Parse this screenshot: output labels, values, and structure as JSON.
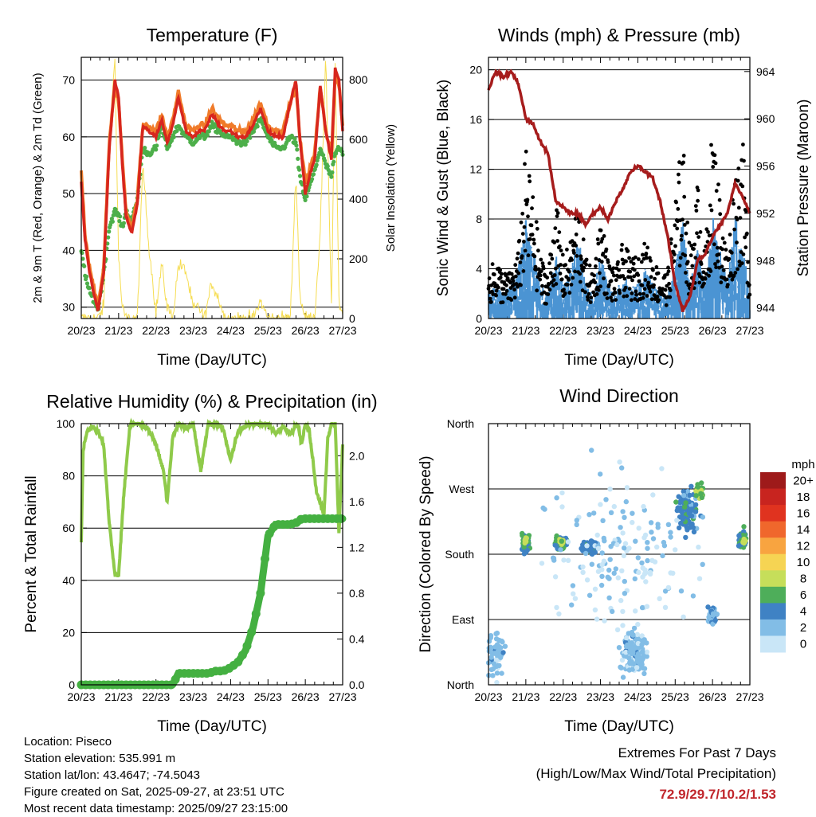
{
  "days": [
    "20/23",
    "21/23",
    "22/23",
    "23/23",
    "24/23",
    "25/23",
    "26/23",
    "27/23"
  ],
  "xlabel": "Time (Day/UTC)",
  "chart_data": [
    {
      "id": "temperature",
      "type": "line",
      "title": "Temperature (F)",
      "ylabel": "2m & 9m T (Red, Orange) & 2m Td (Green)",
      "y2label": "Solar Insolation (Yellow)",
      "ylim": [
        28,
        74
      ],
      "yticks": [
        30,
        40,
        50,
        60,
        70
      ],
      "y2lim": [
        0,
        875
      ],
      "y2ticks": [
        0,
        200,
        400,
        600,
        800
      ],
      "x": [
        0,
        0.1,
        0.2,
        0.35,
        0.45,
        0.6,
        0.75,
        0.9,
        1.0,
        1.1,
        1.2,
        1.35,
        1.5,
        1.65,
        1.8,
        2.0,
        2.15,
        2.3,
        2.45,
        2.6,
        2.8,
        3.0,
        3.15,
        3.3,
        3.5,
        3.7,
        3.85,
        4.0,
        4.2,
        4.4,
        4.6,
        4.8,
        5.0,
        5.2,
        5.4,
        5.6,
        5.75,
        5.85,
        6.0,
        6.15,
        6.25,
        6.4,
        6.55,
        6.7,
        6.8,
        6.9,
        7.0
      ],
      "series": [
        {
          "name": "2m T",
          "color": "#d7261e",
          "values": [
            52,
            42,
            37,
            32,
            29.5,
            36,
            58,
            70,
            67,
            55,
            46,
            43,
            48,
            62,
            61,
            60,
            63,
            59,
            62,
            67,
            61,
            60,
            61,
            61,
            64,
            62,
            61,
            61,
            60,
            60,
            62,
            65,
            61,
            60,
            60,
            66,
            70,
            60,
            50,
            54,
            56,
            69,
            61,
            56,
            72,
            70,
            61
          ]
        },
        {
          "name": "9m T",
          "color": "#f07b2a",
          "values": [
            54,
            43,
            38,
            33,
            30,
            37,
            59,
            69,
            66,
            56,
            47,
            44,
            49,
            62,
            62,
            61,
            64,
            60,
            63,
            68,
            62,
            61,
            62,
            62,
            65,
            63,
            62,
            62,
            61,
            61,
            63,
            66,
            62,
            61,
            61,
            66,
            69,
            60,
            52,
            55,
            57,
            69,
            61,
            57,
            71,
            69,
            62
          ]
        },
        {
          "name": "2m Td",
          "color": "#4daf4a",
          "values": [
            40,
            36,
            33,
            31,
            29.5,
            36,
            44,
            47,
            46,
            44,
            47,
            45,
            49,
            58,
            57,
            58,
            62,
            58,
            60,
            62,
            60,
            59,
            60,
            60,
            62,
            61,
            60,
            60,
            59,
            59,
            61,
            63,
            60,
            58,
            58,
            60,
            59,
            53,
            49,
            52,
            54,
            58,
            55,
            53,
            57,
            58,
            57
          ]
        },
        {
          "name": "Solar Insolation",
          "color": "#f6dd52",
          "axis": "y2",
          "values": [
            0,
            0,
            0,
            0,
            0,
            40,
            600,
            870,
            200,
            30,
            0,
            0,
            0,
            520,
            260,
            20,
            180,
            40,
            0,
            180,
            160,
            30,
            40,
            0,
            120,
            60,
            0,
            0,
            0,
            0,
            0,
            60,
            0,
            0,
            0,
            0,
            500,
            80,
            0,
            0,
            0,
            300,
            870,
            40,
            860,
            50,
            0
          ]
        }
      ]
    },
    {
      "id": "winds",
      "type": "line",
      "title": "Winds (mph) & Pressure (mb)",
      "ylabel": "Sonic Wind & Gust (Blue, Black)",
      "y2label": "Station Pressure (Maroon)",
      "ylim": [
        0,
        21
      ],
      "yticks": [
        0,
        4,
        8,
        12,
        16,
        20
      ],
      "y2lim": [
        943.1,
        965.2
      ],
      "y2ticks": [
        944,
        948,
        952,
        956,
        960,
        964
      ],
      "x": [
        0,
        0.2,
        0.4,
        0.6,
        0.8,
        1.0,
        1.2,
        1.4,
        1.6,
        1.8,
        2.0,
        2.2,
        2.4,
        2.6,
        2.8,
        3.0,
        3.2,
        3.4,
        3.6,
        3.8,
        4.0,
        4.2,
        4.4,
        4.6,
        4.8,
        5.0,
        5.2,
        5.4,
        5.6,
        5.8,
        6.0,
        6.2,
        6.4,
        6.6,
        6.8,
        7.0
      ],
      "series": [
        {
          "name": "Sonic Wind",
          "color": "#4b94d3",
          "values": [
            1.5,
            2,
            1.5,
            2,
            3,
            6,
            4,
            2,
            1.5,
            4,
            2,
            3,
            5,
            2,
            1.5,
            4,
            2,
            1.5,
            2.5,
            2,
            2,
            3,
            2,
            1.5,
            1.5,
            3,
            6,
            2,
            4,
            2,
            6,
            4,
            2,
            6,
            4,
            2
          ]
        },
        {
          "name": "Gust",
          "color": "#000000",
          "values": [
            3,
            4,
            3,
            3,
            4.5,
            11,
            8,
            4,
            3,
            8,
            4,
            5,
            8,
            4,
            3,
            7,
            4,
            3,
            5,
            4,
            4,
            5,
            4,
            3,
            3,
            8,
            12,
            4,
            9,
            4,
            13,
            8,
            4,
            10,
            12,
            3
          ]
        },
        {
          "name": "Station Pressure",
          "color": "#a61c1c",
          "axis": "y2",
          "values": [
            962.5,
            964,
            963.5,
            964,
            963,
            960,
            959.5,
            958,
            957,
            953,
            952.5,
            952,
            952,
            951,
            952,
            952.5,
            951.5,
            953,
            954,
            955.5,
            956,
            955.5,
            955,
            953,
            950,
            946,
            943.8,
            945,
            948,
            948.5,
            950,
            951,
            952,
            954.5,
            953.5,
            952
          ]
        }
      ]
    },
    {
      "id": "humidity",
      "type": "line",
      "title": "Relative Humidity (%) & Precipitation (in)",
      "ylabel": "Percent & Total Rainfall",
      "ylim": [
        0,
        100
      ],
      "yticks": [
        0,
        20,
        40,
        60,
        80,
        100
      ],
      "y2lim": [
        0,
        2.28
      ],
      "y2ticks": [
        "0.0",
        "0.4",
        "0.8",
        "1.2",
        "1.6",
        "2.0"
      ],
      "x": [
        0,
        0.05,
        0.15,
        0.3,
        0.45,
        0.6,
        0.75,
        0.9,
        1.0,
        1.15,
        1.3,
        1.4,
        1.55,
        1.7,
        1.8,
        2.0,
        2.2,
        2.3,
        2.45,
        2.6,
        2.8,
        3.0,
        3.2,
        3.4,
        3.6,
        3.8,
        4.0,
        4.2,
        4.4,
        4.6,
        4.8,
        5.0,
        5.2,
        5.4,
        5.6,
        5.8,
        5.9,
        6.0,
        6.1,
        6.3,
        6.5,
        6.6,
        6.7,
        6.8,
        6.9,
        7.0
      ],
      "series": [
        {
          "name": "Relative Humidity",
          "color": "#8fca4a",
          "values": [
            55,
            90,
            97,
            99,
            97,
            92,
            62,
            42,
            42,
            75,
            99,
            100,
            100,
            99,
            98,
            92,
            82,
            70,
            95,
            100,
            98,
            100,
            82,
            100,
            100,
            98,
            86,
            97,
            99,
            100,
            100,
            100,
            96,
            99,
            96,
            100,
            92,
            100,
            98,
            74,
            65,
            94,
            100,
            100,
            58,
            92
          ]
        },
        {
          "name": "Total Precipitation",
          "color": "#44b041",
          "axis": "y2",
          "values": [
            0,
            0,
            0,
            0,
            0,
            0,
            0,
            0,
            0,
            0,
            0,
            0,
            0,
            0,
            0,
            0,
            0,
            0,
            0,
            0.1,
            0.1,
            0.1,
            0.1,
            0.1,
            0.12,
            0.12,
            0.15,
            0.2,
            0.3,
            0.5,
            0.8,
            1.3,
            1.4,
            1.4,
            1.4,
            1.42,
            1.45,
            1.45,
            1.45,
            1.45,
            1.45,
            1.45,
            1.45,
            1.45,
            1.45,
            1.45
          ]
        }
      ]
    },
    {
      "id": "direction",
      "type": "scatter",
      "title": "Wind Direction",
      "ylabel": "Direction (Colored By Speed)",
      "ylim": [
        0,
        360
      ],
      "yticks": [
        "North",
        "East",
        "South",
        "West",
        "North"
      ],
      "legend_title": "mph",
      "legend_labels": [
        "20+",
        "18",
        "16",
        "14",
        "12",
        "10",
        "8",
        "6",
        "4",
        "2",
        "0"
      ],
      "legend_colors": [
        "#9e1a1a",
        "#c8241f",
        "#e0331f",
        "#f0672c",
        "#f8a440",
        "#f6d453",
        "#c6de5a",
        "#4eae5a",
        "#3f82c4",
        "#82bde6",
        "#c9e6f7"
      ],
      "clusters": [
        {
          "x": 0.2,
          "dx": 0.35,
          "dir": 40,
          "ddir": 55,
          "speed": 2,
          "n": 60
        },
        {
          "x": 1.0,
          "dx": 0.15,
          "dir": 195,
          "ddir": 20,
          "speed": 5,
          "n": 60
        },
        {
          "x": 1.0,
          "dx": 0.05,
          "dir": 200,
          "ddir": 6,
          "speed": 8,
          "n": 12
        },
        {
          "x": 1.95,
          "dx": 0.25,
          "dir": 195,
          "ddir": 15,
          "speed": 5,
          "n": 70
        },
        {
          "x": 1.95,
          "dx": 0.08,
          "dir": 197,
          "ddir": 5,
          "speed": 8,
          "n": 14
        },
        {
          "x": 2.75,
          "dx": 0.35,
          "dir": 190,
          "ddir": 15,
          "speed": 4,
          "n": 70
        },
        {
          "x": 3.9,
          "dx": 0.55,
          "dir": 45,
          "ddir": 45,
          "speed": 2,
          "n": 140
        },
        {
          "x": 5.3,
          "dx": 0.45,
          "dir": 240,
          "ddir": 45,
          "speed": 4,
          "n": 110
        },
        {
          "x": 5.65,
          "dx": 0.2,
          "dir": 265,
          "ddir": 20,
          "speed": 7,
          "n": 35
        },
        {
          "x": 6.0,
          "dx": 0.2,
          "dir": 95,
          "ddir": 25,
          "speed": 3,
          "n": 30
        },
        {
          "x": 6.8,
          "dx": 0.2,
          "dir": 200,
          "ddir": 22,
          "speed": 5,
          "n": 45
        },
        {
          "x": 6.85,
          "dx": 0.05,
          "dir": 198,
          "ddir": 6,
          "speed": 8,
          "n": 10
        },
        {
          "x": 3.5,
          "dx": 3.6,
          "dir": 180,
          "ddir": 180,
          "speed": 1,
          "n": 160
        }
      ]
    }
  ],
  "info": {
    "location": "Location: Piseco",
    "elevation": "Station elevation: 535.991 m",
    "latlon": "Station lat/lon: 43.4647; -74.5043",
    "created": "Figure created on Sat, 2025-09-27, at 23:51 UTC",
    "recent": "Most recent data timestamp: 2025/09/27 23:15:00"
  },
  "extremes": {
    "title": "Extremes For Past 7 Days",
    "subtitle": "(High/Low/Max Wind/Total Precipitation)",
    "values": "72.9/29.7/10.2/1.53"
  }
}
